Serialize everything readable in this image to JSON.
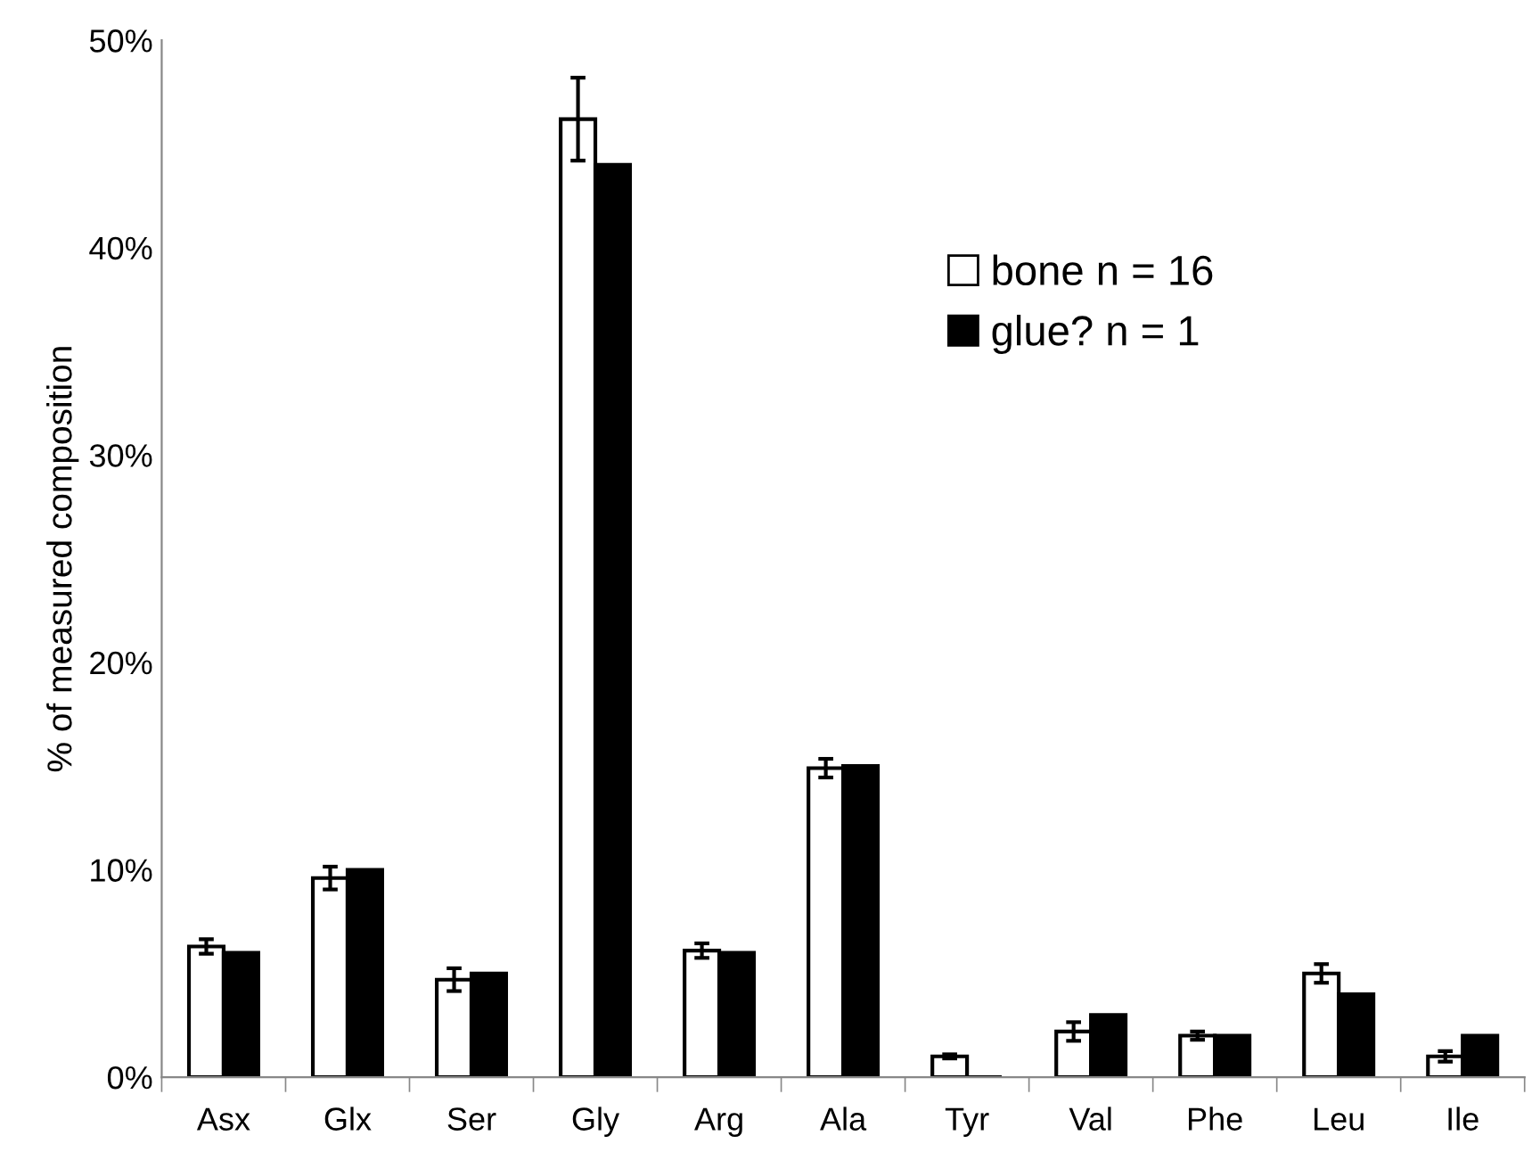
{
  "chart_data": {
    "type": "bar",
    "ylabel": "% of measured composition",
    "categories": [
      "Asx",
      "Glx",
      "Ser",
      "Gly",
      "Arg",
      "Ala",
      "Tyr",
      "Val",
      "Phe",
      "Leu",
      "Ile"
    ],
    "series": [
      {
        "name": "bone n = 16",
        "color": "#ffffff",
        "values": [
          6.3,
          9.6,
          4.7,
          46.2,
          6.1,
          14.9,
          1.0,
          2.2,
          2.0,
          5.0,
          1.0
        ],
        "errors": [
          0.35,
          0.55,
          0.55,
          2.0,
          0.35,
          0.45,
          0.1,
          0.45,
          0.2,
          0.45,
          0.25
        ]
      },
      {
        "name": "glue? n = 1",
        "color": "#000000",
        "values": [
          6.0,
          10.0,
          5.0,
          44.0,
          6.0,
          15.0,
          0.0,
          3.0,
          2.0,
          4.0,
          2.0
        ]
      }
    ],
    "ylim": [
      0,
      50
    ],
    "yticks": [
      {
        "value": 0,
        "label": "0%"
      },
      {
        "value": 10,
        "label": "10%"
      },
      {
        "value": 20,
        "label": "20%"
      },
      {
        "value": 30,
        "label": "30%"
      },
      {
        "value": 40,
        "label": "40%"
      },
      {
        "value": 50,
        "label": "50%"
      }
    ],
    "grid": false,
    "legend": "top right"
  }
}
